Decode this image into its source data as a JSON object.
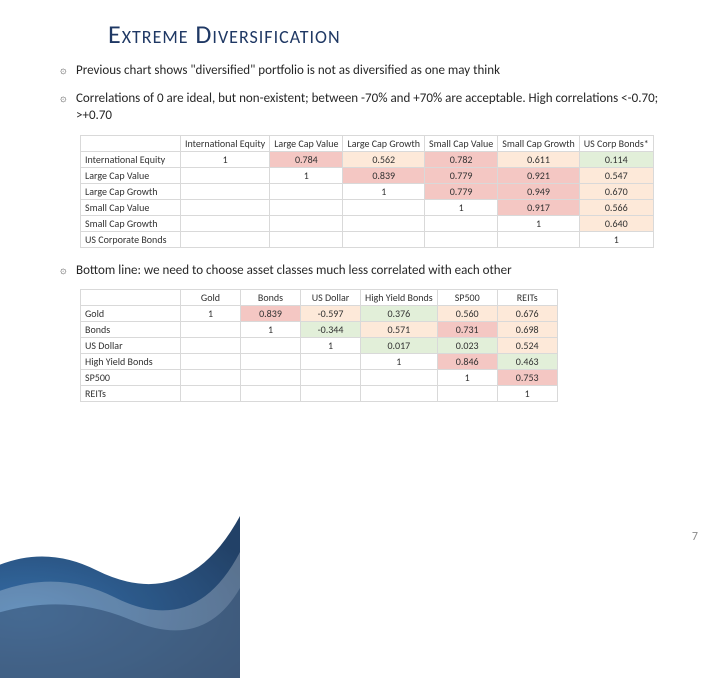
{
  "title": "Extreme Diversification",
  "page_number": "7",
  "colors": {
    "title": "#1f3864",
    "text": "#262626",
    "border": "#d9d9d9",
    "fill_high": "#f4c7c3",
    "fill_mid": "#fde9d9",
    "fill_low": "#e2efd9"
  },
  "bullets": [
    "Previous chart shows \"diversified\" portfolio is not as diversified as one may think",
    "Correlations of 0 are ideal, but non-existent; between -70% and +70% are acceptable.  High correlations <-0.70; >+0.70",
    "Bottom line: we need to choose asset classes much less correlated with each other"
  ],
  "table1": {
    "headers": [
      "International Equity",
      "Large Cap Value",
      "Large Cap Growth",
      "Small Cap Value",
      "Small Cap Growth",
      "US Corp Bonds*"
    ],
    "rowHeaders": [
      "International Equity",
      "Large Cap Value",
      "Large Cap Growth",
      "Small Cap Value",
      "Small Cap Growth",
      "US Corporate Bonds"
    ],
    "cells": [
      [
        {
          "v": "1",
          "c": null
        },
        {
          "v": "0.784",
          "c": "high"
        },
        {
          "v": "0.562",
          "c": "mid"
        },
        {
          "v": "0.782",
          "c": "high"
        },
        {
          "v": "0.611",
          "c": "mid"
        },
        {
          "v": "0.114",
          "c": "low"
        }
      ],
      [
        {
          "v": "",
          "c": null
        },
        {
          "v": "1",
          "c": null
        },
        {
          "v": "0.839",
          "c": "high"
        },
        {
          "v": "0.779",
          "c": "high"
        },
        {
          "v": "0.921",
          "c": "high"
        },
        {
          "v": "0.547",
          "c": "mid"
        }
      ],
      [
        {
          "v": "",
          "c": null
        },
        {
          "v": "",
          "c": null
        },
        {
          "v": "1",
          "c": null
        },
        {
          "v": "0.779",
          "c": "high"
        },
        {
          "v": "0.949",
          "c": "high"
        },
        {
          "v": "0.670",
          "c": "mid"
        }
      ],
      [
        {
          "v": "",
          "c": null
        },
        {
          "v": "",
          "c": null
        },
        {
          "v": "",
          "c": null
        },
        {
          "v": "1",
          "c": null
        },
        {
          "v": "0.917",
          "c": "high"
        },
        {
          "v": "0.566",
          "c": "mid"
        }
      ],
      [
        {
          "v": "",
          "c": null
        },
        {
          "v": "",
          "c": null
        },
        {
          "v": "",
          "c": null
        },
        {
          "v": "",
          "c": null
        },
        {
          "v": "1",
          "c": null
        },
        {
          "v": "0.640",
          "c": "mid"
        }
      ],
      [
        {
          "v": "",
          "c": null
        },
        {
          "v": "",
          "c": null
        },
        {
          "v": "",
          "c": null
        },
        {
          "v": "",
          "c": null
        },
        {
          "v": "",
          "c": null
        },
        {
          "v": "1",
          "c": null
        }
      ]
    ]
  },
  "table2": {
    "headers": [
      "Gold",
      "Bonds",
      "US Dollar",
      "High Yield Bonds",
      "SP500",
      "REITs"
    ],
    "rowHeaders": [
      "Gold",
      "Bonds",
      "US Dollar",
      "High Yield Bonds",
      "SP500",
      "REITs"
    ],
    "cells": [
      [
        {
          "v": "1",
          "c": null
        },
        {
          "v": "0.839",
          "c": "high"
        },
        {
          "v": "-0.597",
          "c": "mid"
        },
        {
          "v": "0.376",
          "c": "low"
        },
        {
          "v": "0.560",
          "c": "mid"
        },
        {
          "v": "0.676",
          "c": "mid"
        }
      ],
      [
        {
          "v": "",
          "c": null
        },
        {
          "v": "1",
          "c": null
        },
        {
          "v": "-0.344",
          "c": "low"
        },
        {
          "v": "0.571",
          "c": "mid"
        },
        {
          "v": "0.731",
          "c": "high"
        },
        {
          "v": "0.698",
          "c": "mid"
        }
      ],
      [
        {
          "v": "",
          "c": null
        },
        {
          "v": "",
          "c": null
        },
        {
          "v": "1",
          "c": null
        },
        {
          "v": "0.017",
          "c": "low"
        },
        {
          "v": "0.023",
          "c": "low"
        },
        {
          "v": "0.524",
          "c": "mid"
        }
      ],
      [
        {
          "v": "",
          "c": null
        },
        {
          "v": "",
          "c": null
        },
        {
          "v": "",
          "c": null
        },
        {
          "v": "1",
          "c": null
        },
        {
          "v": "0.846",
          "c": "high"
        },
        {
          "v": "0.463",
          "c": "low"
        }
      ],
      [
        {
          "v": "",
          "c": null
        },
        {
          "v": "",
          "c": null
        },
        {
          "v": "",
          "c": null
        },
        {
          "v": "",
          "c": null
        },
        {
          "v": "1",
          "c": null
        },
        {
          "v": "0.753",
          "c": "high"
        }
      ],
      [
        {
          "v": "",
          "c": null
        },
        {
          "v": "",
          "c": null
        },
        {
          "v": "",
          "c": null
        },
        {
          "v": "",
          "c": null
        },
        {
          "v": "",
          "c": null
        },
        {
          "v": "1",
          "c": null
        }
      ]
    ]
  }
}
